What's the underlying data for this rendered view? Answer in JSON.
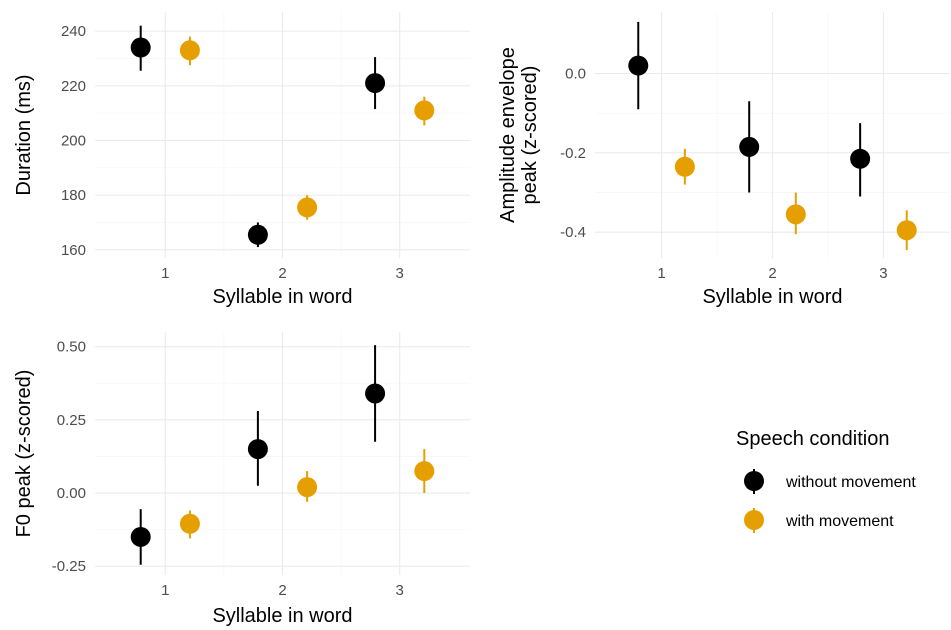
{
  "colors": {
    "without_movement": "#000000",
    "with_movement": "#E69F00"
  },
  "legend": {
    "title": "Speech condition",
    "items": [
      {
        "label": "without movement",
        "color": "#000000"
      },
      {
        "label": "with movement",
        "color": "#E69F00"
      }
    ]
  },
  "chart_data": [
    {
      "type": "scatter",
      "xlabel": "Syllable in word",
      "ylabel": "Duration (ms)",
      "categories": [
        "1",
        "2",
        "3"
      ],
      "ylim": [
        157,
        247
      ],
      "yticks": [
        160,
        180,
        200,
        220,
        240
      ],
      "yticklabels": [
        "160",
        "180",
        "200",
        "220",
        "240"
      ],
      "grid": true,
      "series": [
        {
          "name": "without movement",
          "color": "#000000",
          "values": [
            234,
            165.5,
            221
          ],
          "lower": [
            225.5,
            161,
            211.5
          ],
          "upper": [
            242,
            170,
            230.5
          ]
        },
        {
          "name": "with movement",
          "color": "#E69F00",
          "values": [
            233,
            175.5,
            211
          ],
          "lower": [
            227.5,
            171,
            205.5
          ],
          "upper": [
            238,
            180,
            216
          ]
        }
      ]
    },
    {
      "type": "scatter",
      "xlabel": "Syllable in word",
      "ylabel": "Amplitude envelope peak (z-scored)",
      "ylabel_lines": [
        "Amplitude envelope",
        "peak (z-scored)"
      ],
      "categories": [
        "1",
        "2",
        "3"
      ],
      "ylim": [
        -0.465,
        0.155
      ],
      "yticks": [
        0.0,
        -0.2,
        -0.4
      ],
      "yticklabels": [
        "0.0",
        "-0.2",
        "-0.4"
      ],
      "grid": true,
      "series": [
        {
          "name": "without movement",
          "color": "#000000",
          "values": [
            0.02,
            -0.185,
            -0.215
          ],
          "lower": [
            -0.09,
            -0.3,
            -0.31
          ],
          "upper": [
            0.13,
            -0.07,
            -0.125
          ]
        },
        {
          "name": "with movement",
          "color": "#E69F00",
          "values": [
            -0.235,
            -0.355,
            -0.395
          ],
          "lower": [
            -0.28,
            -0.405,
            -0.445
          ],
          "upper": [
            -0.19,
            -0.3,
            -0.345
          ]
        }
      ]
    },
    {
      "type": "scatter",
      "xlabel": "Syllable in word",
      "ylabel": "F0 peak (z-scored)",
      "categories": [
        "1",
        "2",
        "3"
      ],
      "ylim": [
        -0.28,
        0.55
      ],
      "yticks": [
        -0.25,
        0.0,
        0.25,
        0.5
      ],
      "yticklabels": [
        "-0.25",
        "0.00",
        "0.25",
        "0.50"
      ],
      "grid": true,
      "series": [
        {
          "name": "without movement",
          "color": "#000000",
          "values": [
            -0.15,
            0.15,
            0.34
          ],
          "lower": [
            -0.245,
            0.025,
            0.175
          ],
          "upper": [
            -0.055,
            0.28,
            0.505
          ]
        },
        {
          "name": "with movement",
          "color": "#E69F00",
          "values": [
            -0.105,
            0.02,
            0.075
          ],
          "lower": [
            -0.155,
            -0.03,
            0.0
          ],
          "upper": [
            -0.06,
            0.075,
            0.15
          ]
        }
      ]
    }
  ]
}
